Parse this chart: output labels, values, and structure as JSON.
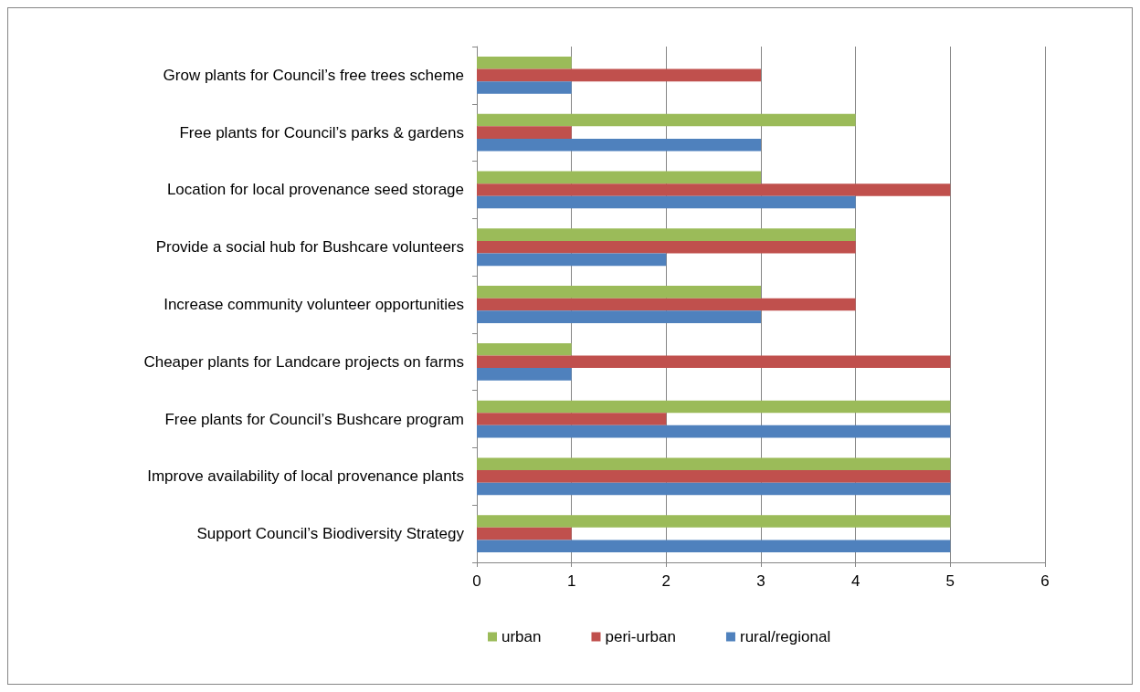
{
  "chart_data": {
    "type": "bar",
    "orientation": "horizontal",
    "categories": [
      "Grow plants for Council’s free trees scheme",
      "Free plants for Council’s parks & gardens",
      "Location for local provenance seed storage",
      "Provide a social hub for Bushcare volunteers",
      "Increase community volunteer opportunities",
      "Cheaper plants for Landcare projects on farms",
      "Free plants for Council’s Bushcare program",
      "Improve availability of local provenance plants",
      "Support Council’s Biodiversity Strategy"
    ],
    "series": [
      {
        "name": "urban",
        "color": "#9bbb59",
        "values": [
          1,
          4,
          3,
          4,
          3,
          1,
          5,
          5,
          5
        ]
      },
      {
        "name": "peri-urban",
        "color": "#c0504d",
        "values": [
          3,
          1,
          5,
          4,
          4,
          5,
          2,
          5,
          1
        ]
      },
      {
        "name": "rural/regional",
        "color": "#4f81bd",
        "values": [
          1,
          3,
          4,
          2,
          3,
          1,
          5,
          5,
          5
        ]
      }
    ],
    "xlim": [
      0,
      6
    ],
    "xticks": [
      0,
      1,
      2,
      3,
      4,
      5,
      6
    ],
    "grid": "x",
    "legend": "bottom"
  }
}
